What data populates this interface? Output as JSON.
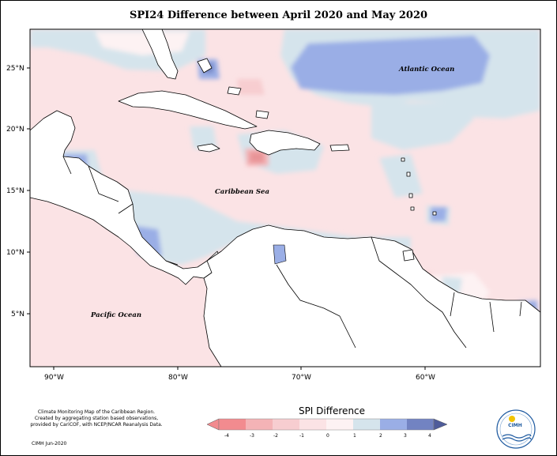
{
  "title": "SPI24 Difference between April 2020 and May 2020",
  "axes": {
    "lat_labels": [
      "25°N",
      "20°N",
      "15°N",
      "10°N",
      "5°N"
    ],
    "lon_labels": [
      "90°W",
      "80°W",
      "70°W",
      "60°W"
    ]
  },
  "labels": {
    "atlantic": "Atlantic Ocean",
    "caribbean": "Caribbean Sea",
    "pacific": "Pacific Ocean"
  },
  "credit": {
    "lines": [
      "Climate Monitoring Map of the Caribbean Region.",
      "Created by aggregating station based observations,",
      "provided by CariCOF, with NCEP/NCAR Reanalysis Data."
    ],
    "date": "CIMH Jun-2020"
  },
  "legend": {
    "title": "SPI Difference",
    "ticks": [
      "-4",
      "-3",
      "-2",
      "-1",
      "0",
      "1",
      "2",
      "3",
      "4"
    ],
    "colors": [
      "#f28b8f",
      "#f4b3b6",
      "#f7cdd0",
      "#fbe3e5",
      "#fdf2f3",
      "#d5e4ec",
      "#9aaee6",
      "#7283c2",
      "#4f5c9a"
    ]
  },
  "logo": {
    "text": "CIMH"
  },
  "colors": {
    "slight_dry": "#fbe3e5",
    "near_normal": "#fdf2f3",
    "slight_wet": "#d5e4ec",
    "wet": "#9aaee6",
    "dry": "#f4b3b6",
    "very_dry": "#e89497"
  }
}
